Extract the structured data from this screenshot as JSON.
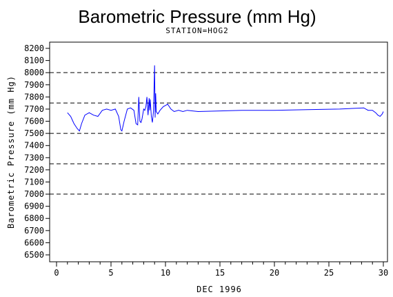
{
  "chart_data": {
    "type": "line",
    "title": "Barometric Pressure (mm Hg)",
    "subtitle": "STATION=HOG2",
    "xlabel": "DEC 1996",
    "ylabel": "Barometric Pressure (mm Hg)",
    "xlim": [
      0,
      30
    ],
    "ylim": [
      6500,
      8200
    ],
    "x_ticks": [
      0,
      5,
      10,
      15,
      20,
      25,
      30
    ],
    "y_ticks": [
      6500,
      6600,
      6700,
      6800,
      6900,
      7000,
      7100,
      7200,
      7300,
      7400,
      7500,
      7600,
      7700,
      7800,
      7900,
      8000,
      8100,
      8200
    ],
    "reference_lines": [
      8000,
      7750,
      7500,
      7250,
      7000
    ],
    "line_color": "#0000ff",
    "series": [
      {
        "x": [
          1.0,
          1.3,
          1.6,
          1.9,
          2.1,
          2.3,
          2.6,
          3.0,
          3.4,
          3.8,
          4.2,
          4.6,
          5.0,
          5.4,
          5.7,
          5.9,
          6.0,
          6.2,
          6.5,
          6.8,
          7.1,
          7.3,
          7.45,
          7.55,
          7.65,
          7.75,
          7.85,
          8.0,
          8.1,
          8.2,
          8.3,
          8.4,
          8.5,
          8.55,
          8.6,
          8.7,
          8.8,
          8.9,
          9.0,
          9.05,
          9.1,
          9.15,
          9.3,
          9.5,
          9.8,
          10.2,
          10.5,
          10.8,
          11.2,
          11.6,
          12.0,
          13,
          15,
          17,
          20,
          23,
          26,
          28.2,
          28.6,
          29.0,
          29.3,
          29.5,
          29.7,
          29.9,
          30.0
        ],
        "y": [
          7670,
          7640,
          7580,
          7540,
          7520,
          7580,
          7650,
          7670,
          7650,
          7640,
          7690,
          7700,
          7690,
          7700,
          7640,
          7530,
          7520,
          7600,
          7700,
          7710,
          7690,
          7580,
          7570,
          7800,
          7600,
          7590,
          7620,
          7700,
          7690,
          7720,
          7800,
          7650,
          7790,
          7690,
          7780,
          7640,
          7590,
          7680,
          8060,
          7630,
          7830,
          7680,
          7660,
          7690,
          7720,
          7740,
          7700,
          7680,
          7690,
          7680,
          7690,
          7680,
          7685,
          7690,
          7690,
          7695,
          7700,
          7710,
          7690,
          7690,
          7670,
          7650,
          7640,
          7660,
          7680
        ]
      }
    ]
  }
}
